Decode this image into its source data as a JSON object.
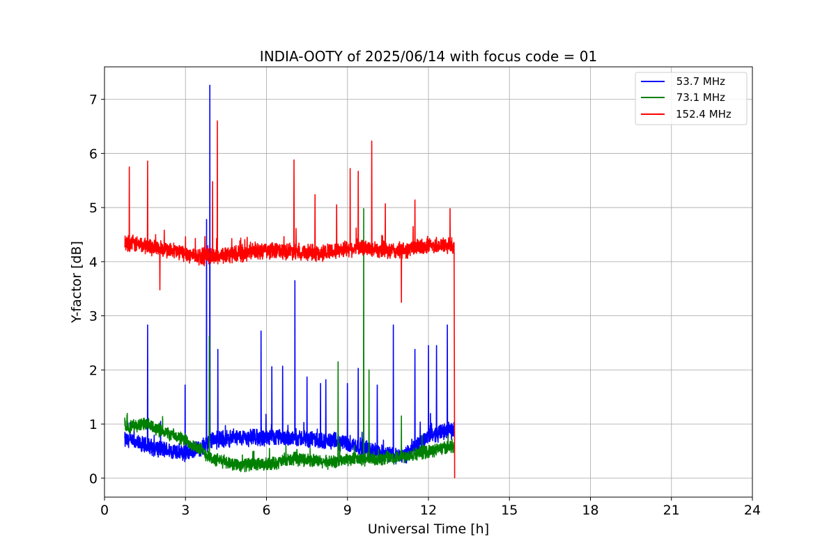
{
  "chart_data": {
    "type": "line",
    "title": "INDIA-OOTY of 2025/06/14 with focus code = 01",
    "xlabel": "Universal Time [h]",
    "ylabel": "Y-factor [dB]",
    "xlim": [
      0,
      24
    ],
    "ylim": [
      -0.35,
      7.6
    ],
    "xticks": [
      0,
      3,
      6,
      9,
      12,
      15,
      18,
      21,
      24
    ],
    "yticks": [
      0,
      1,
      2,
      3,
      4,
      5,
      6,
      7
    ],
    "xtick_labels": [
      "0",
      "3",
      "6",
      "9",
      "12",
      "15",
      "18",
      "21",
      "24"
    ],
    "ytick_labels": [
      "0",
      "1",
      "2",
      "3",
      "4",
      "5",
      "6",
      "7"
    ],
    "grid": true,
    "legend_position": "top-right",
    "series": [
      {
        "name": " 53.7 MHz",
        "color": "#0000ff",
        "noise": 0.09,
        "x": [
          0.75,
          1.5,
          2.5,
          3.0,
          3.5,
          4.0,
          5.0,
          6.0,
          7.0,
          8.0,
          9.0,
          10.0,
          11.0,
          11.5,
          12.0,
          12.5,
          12.95
        ],
        "y": [
          0.7,
          0.6,
          0.5,
          0.45,
          0.55,
          0.7,
          0.75,
          0.75,
          0.75,
          0.7,
          0.65,
          0.5,
          0.4,
          0.55,
          0.8,
          0.85,
          0.9
        ],
        "spikes": [
          [
            1.6,
            2.83
          ],
          [
            2.99,
            1.72
          ],
          [
            3.78,
            4.78
          ],
          [
            3.9,
            7.26
          ],
          [
            4.2,
            2.38
          ],
          [
            5.8,
            2.72
          ],
          [
            6.2,
            2.06
          ],
          [
            6.6,
            2.07
          ],
          [
            7.05,
            3.65
          ],
          [
            7.5,
            1.87
          ],
          [
            8.0,
            1.75
          ],
          [
            8.2,
            1.82
          ],
          [
            9.0,
            1.75
          ],
          [
            9.4,
            2.03
          ],
          [
            10.1,
            1.72
          ],
          [
            10.7,
            2.83
          ],
          [
            11.5,
            2.38
          ],
          [
            12.0,
            2.45
          ],
          [
            12.3,
            2.45
          ],
          [
            12.7,
            2.83
          ]
        ]
      },
      {
        "name": " 73.1 MHz",
        "color": "#008000",
        "noise": 0.07,
        "x": [
          0.75,
          1.5,
          2.0,
          2.5,
          3.0,
          3.5,
          4.0,
          5.0,
          6.0,
          6.5,
          7.0,
          7.5,
          8.0,
          8.5,
          9.0,
          10.0,
          11.0,
          11.5,
          12.0,
          12.5,
          12.95
        ],
        "y": [
          0.95,
          1.0,
          0.9,
          0.8,
          0.7,
          0.55,
          0.35,
          0.25,
          0.25,
          0.3,
          0.35,
          0.35,
          0.3,
          0.3,
          0.35,
          0.35,
          0.4,
          0.45,
          0.5,
          0.55,
          0.6
        ],
        "spikes": [
          [
            3.88,
            2.62
          ],
          [
            8.65,
            2.15
          ],
          [
            9.6,
            4.98
          ],
          [
            9.8,
            2.0
          ],
          [
            11.0,
            1.15
          ]
        ]
      },
      {
        "name": "152.4 MHz",
        "color": "#ff0000",
        "noise": 0.09,
        "x": [
          0.75,
          1.5,
          2.5,
          3.5,
          4.0,
          5.0,
          6.0,
          7.0,
          8.0,
          9.0,
          10.0,
          10.5,
          11.0,
          12.0,
          12.95
        ],
        "y": [
          4.35,
          4.3,
          4.2,
          4.1,
          4.1,
          4.15,
          4.2,
          4.2,
          4.15,
          4.25,
          4.25,
          4.2,
          4.2,
          4.3,
          4.3
        ],
        "spikes": [
          [
            0.92,
            5.75
          ],
          [
            1.6,
            5.86
          ],
          [
            2.05,
            3.48
          ],
          [
            4.0,
            5.48
          ],
          [
            4.18,
            6.6
          ],
          [
            7.02,
            5.88
          ],
          [
            7.8,
            5.24
          ],
          [
            8.6,
            5.05
          ],
          [
            9.1,
            5.72
          ],
          [
            9.4,
            5.67
          ],
          [
            9.9,
            6.23
          ],
          [
            10.4,
            5.07
          ],
          [
            11.0,
            3.25
          ],
          [
            11.5,
            5.14
          ],
          [
            12.8,
            4.98
          ]
        ],
        "drop": [
          12.97,
          0.0
        ]
      }
    ]
  }
}
